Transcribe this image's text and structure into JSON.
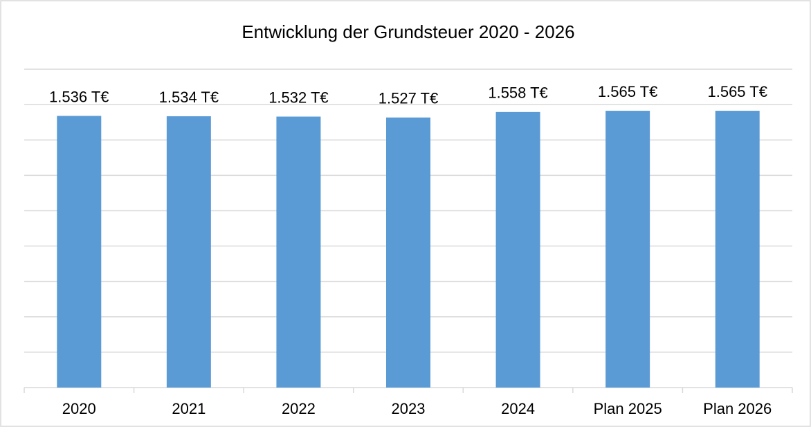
{
  "chart_data": {
    "type": "bar",
    "title": "Entwicklung der Grundsteuer 2020 - 2026",
    "categories": [
      "2020",
      "2021",
      "2022",
      "2023",
      "2024",
      "Plan 2025",
      "Plan 2026"
    ],
    "values": [
      1536,
      1534,
      1532,
      1527,
      1558,
      1565,
      1565
    ],
    "value_labels": [
      "1.536 T€",
      "1.534 T€",
      "1.532 T€",
      "1.527 T€",
      "1.558 T€",
      "1.565 T€",
      "1.565 T€"
    ],
    "color": "#5b9bd5",
    "ylim": [
      0,
      1800
    ],
    "yticks": [
      0,
      200,
      400,
      600,
      800,
      1000,
      1200,
      1400,
      1600,
      1800
    ],
    "grid": true
  }
}
